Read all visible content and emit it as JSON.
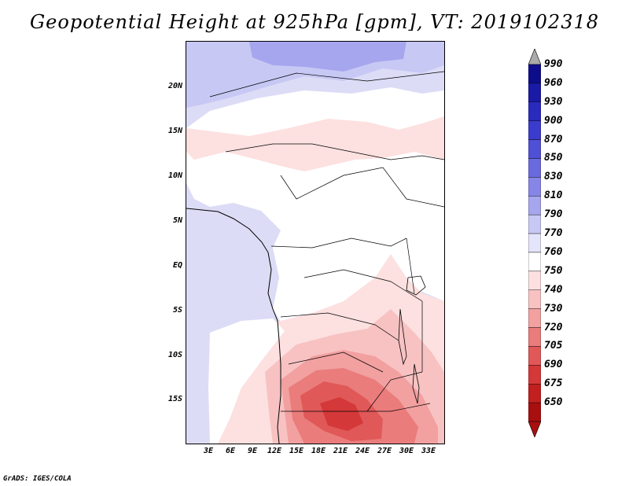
{
  "title": "Geopotential Height at 925hPa [gpm], VT: 2019102318",
  "credit": "GrADS: IGES/COLA",
  "map": {
    "y_axis_labels": [
      "20N",
      "15N",
      "10N",
      "5N",
      "EQ",
      "5S",
      "10S",
      "15S"
    ],
    "x_axis_labels": [
      "3E",
      "6E",
      "9E",
      "12E",
      "15E",
      "18E",
      "21E",
      "24E",
      "27E",
      "30E",
      "33E"
    ]
  },
  "colorbar": {
    "levels": [
      "990",
      "960",
      "930",
      "900",
      "870",
      "850",
      "830",
      "810",
      "790",
      "770",
      "760",
      "750",
      "740",
      "730",
      "720",
      "705",
      "690",
      "675",
      "650"
    ],
    "colors": [
      "#0d0d8c",
      "#1a1aa6",
      "#2a2abd",
      "#3b3bcc",
      "#5050d6",
      "#6a6adf",
      "#8686e8",
      "#a6a6ef",
      "#c8c8f5",
      "#e4e4fb",
      "#ffffff",
      "#fde0e0",
      "#f8c2c2",
      "#f2a0a0",
      "#ea7c7c",
      "#e05858",
      "#d43838",
      "#c21f1f",
      "#a80f0f"
    ],
    "top_arrow_color": "#aaaaaa",
    "bottom_arrow_color": "#a80f0f"
  }
}
